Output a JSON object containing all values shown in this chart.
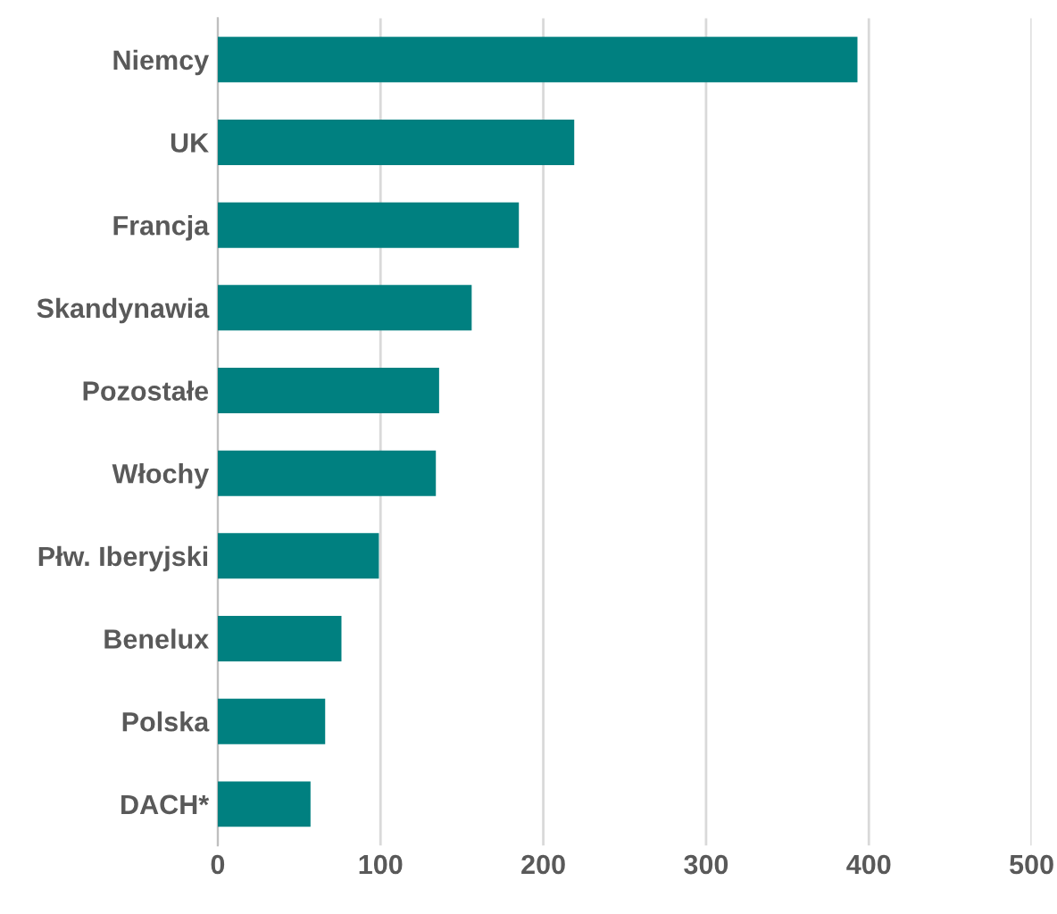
{
  "chart_data": {
    "type": "bar",
    "orientation": "horizontal",
    "categories": [
      "Niemcy",
      "UK",
      "Francja",
      "Skandynawia",
      "Pozostałe",
      "Włochy",
      "Płw. Iberyjski",
      "Benelux",
      "Polska",
      "DACH*"
    ],
    "values": [
      393,
      219,
      185,
      156,
      136,
      134,
      99,
      76,
      66,
      57
    ],
    "color": "#008080",
    "xlim": [
      0,
      500
    ],
    "xticks": [
      0,
      100,
      200,
      300,
      400,
      500
    ],
    "grid": "x",
    "legend": false
  }
}
